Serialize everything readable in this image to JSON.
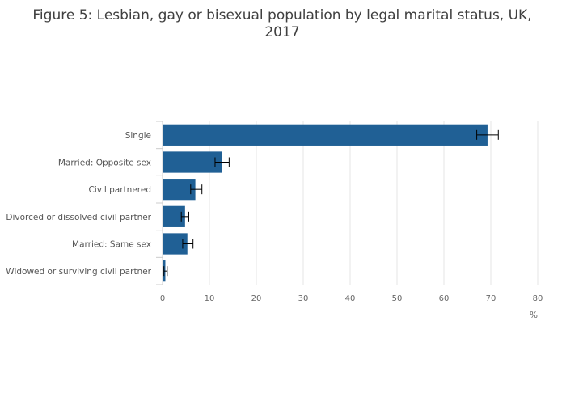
{
  "chart_data": {
    "type": "bar",
    "orientation": "horizontal",
    "title": "Figure 5: Lesbian, gay or bisexual population by legal marital status, UK, 2017",
    "title_lines": [
      "Figure 5: Lesbian, gay or bisexual population by legal marital status, UK,",
      "2017"
    ],
    "categories": [
      "Single",
      "Married: Opposite sex",
      "Civil partnered",
      "Divorced or dissolved civil partner",
      "Married: Same sex",
      "Widowed or surviving civil partner"
    ],
    "values": [
      69.3,
      12.6,
      7.0,
      4.8,
      5.3,
      0.6
    ],
    "error_low": [
      67.0,
      11.2,
      6.0,
      4.0,
      4.3,
      0.3
    ],
    "error_high": [
      71.6,
      14.2,
      8.4,
      5.6,
      6.5,
      1.0
    ],
    "xlabel": "%",
    "xlim": [
      0,
      80
    ],
    "xticks": [
      0,
      10,
      20,
      30,
      40,
      50,
      60,
      70,
      80
    ],
    "grid": true,
    "bar_color": "#206095"
  }
}
